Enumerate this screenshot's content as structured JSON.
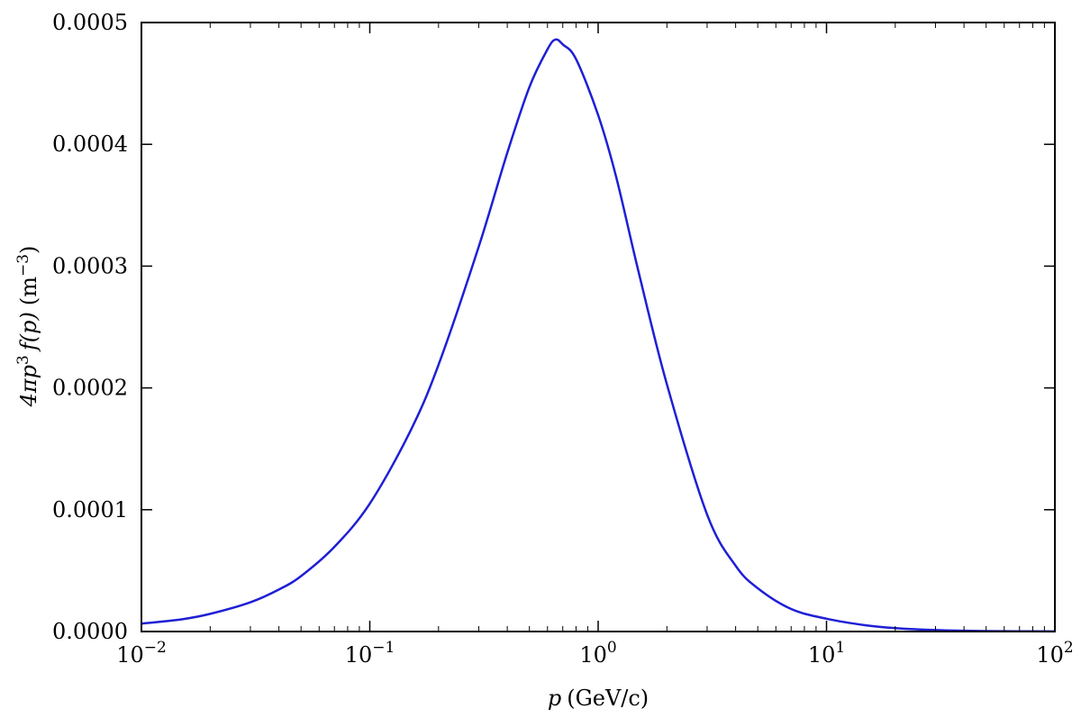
{
  "chart_data": {
    "type": "line",
    "x_scale": "log",
    "xlim": [
      0.01,
      100
    ],
    "ylim": [
      0,
      0.0005
    ],
    "x_ticks": [
      {
        "value": 0.01,
        "base": "10",
        "exp": "−2"
      },
      {
        "value": 0.1,
        "base": "10",
        "exp": "−1"
      },
      {
        "value": 1,
        "base": "10",
        "exp": "0"
      },
      {
        "value": 10,
        "base": "10",
        "exp": "1"
      },
      {
        "value": 100,
        "base": "10",
        "exp": "2"
      }
    ],
    "y_ticks": [
      {
        "value": 0,
        "label": "0.0000"
      },
      {
        "value": 0.0001,
        "label": "0.0001"
      },
      {
        "value": 0.0002,
        "label": "0.0002"
      },
      {
        "value": 0.0003,
        "label": "0.0003"
      },
      {
        "value": 0.0004,
        "label": "0.0004"
      },
      {
        "value": 0.0005,
        "label": "0.0005"
      }
    ],
    "xlabel": {
      "var": "p",
      "unit": "(GeV/c)"
    },
    "ylabel": {
      "prefix": "4πp",
      "sup": "3",
      "func": "f(p)",
      "unit_open": "(m",
      "unit_sup": "−3",
      "unit_close": ")"
    },
    "grid": false,
    "series": [
      {
        "color": "#1f1fd6",
        "x": [
          0.01,
          0.015,
          0.02,
          0.03,
          0.04,
          0.05,
          0.07,
          0.1,
          0.15,
          0.2,
          0.3,
          0.4,
          0.5,
          0.6,
          0.65,
          0.7,
          0.8,
          1.0,
          1.2,
          1.5,
          2.0,
          3.0,
          4.0,
          5.0,
          7.0,
          10,
          15,
          20,
          30,
          50,
          100
        ],
        "y": [
          6.5e-06,
          1e-05,
          1.45e-05,
          2.4e-05,
          3.45e-05,
          4.55e-05,
          6.95e-05,
          0.000105,
          0.000164,
          0.000219,
          0.000316,
          0.000393,
          0.000447,
          0.000478,
          0.000486,
          0.000482,
          0.00047,
          0.000424,
          0.000373,
          0.000296,
          0.000203,
          9.6e-05,
          5.4e-05,
          3.55e-05,
          1.85e-05,
          1.05e-05,
          5e-06,
          2.8e-06,
          1.2e-06,
          4e-07,
          1e-07
        ]
      }
    ]
  }
}
